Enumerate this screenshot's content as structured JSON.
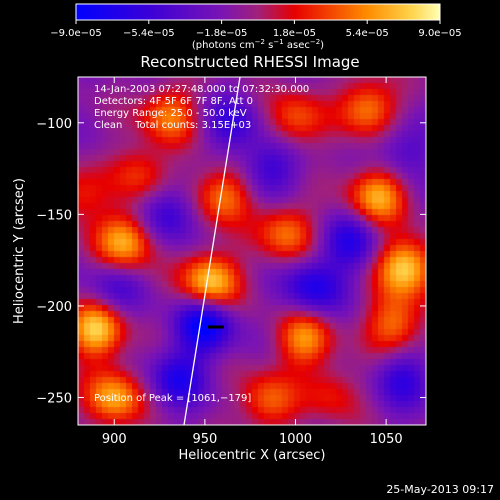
{
  "chart_data": {
    "type": "heatmap",
    "title": "Reconstructed RHESSI Image",
    "xlabel": "Heliocentric X (arcsec)",
    "ylabel": "Heliocentric Y (arcsec)",
    "xlim": [
      880,
      1072
    ],
    "ylim": [
      -265,
      -75
    ],
    "x_ticks": [
      900,
      950,
      1000,
      1050
    ],
    "x_tick_labels": [
      "900",
      "950",
      "1000",
      "1050"
    ],
    "y_ticks": [
      -100,
      -150,
      -200,
      -250
    ],
    "y_tick_labels": [
      "−100",
      "−150",
      "−200",
      "−250"
    ],
    "colorbar": {
      "min": -9e-05,
      "max": 9e-05,
      "tick_labels": [
        "−9.0e−05",
        "−5.4e−05",
        "−1.8e−05",
        "1.8e−05",
        "5.4e−05",
        "9.0e−05"
      ],
      "unit_base": "(photons cm",
      "unit_exp1": "−2",
      "unit_mid": " s",
      "unit_exp2": "−1",
      "unit_mid2": " asec",
      "unit_exp3": "−2",
      "unit_end": ")"
    },
    "blobs": [
      {
        "x": 953,
        "y": -187,
        "value": 9e-05
      },
      {
        "x": 1061,
        "y": -179,
        "value": 9e-05
      },
      {
        "x": 890,
        "y": -213,
        "value": 8.5e-05
      },
      {
        "x": 900,
        "y": -250,
        "value": 7.5e-05
      },
      {
        "x": 906,
        "y": -165,
        "value": 8e-05
      },
      {
        "x": 960,
        "y": -140,
        "value": 6.5e-05
      },
      {
        "x": 995,
        "y": -160,
        "value": 6e-05
      },
      {
        "x": 1045,
        "y": -140,
        "value": 7.5e-05
      },
      {
        "x": 930,
        "y": -96,
        "value": 6e-05
      },
      {
        "x": 1040,
        "y": -92,
        "value": 6.5e-05
      },
      {
        "x": 1000,
        "y": -98,
        "value": 5e-05
      },
      {
        "x": 1005,
        "y": -218,
        "value": 6.5e-05
      },
      {
        "x": 1055,
        "y": -210,
        "value": 6e-05
      },
      {
        "x": 985,
        "y": -252,
        "value": 5.5e-05
      },
      {
        "x": 915,
        "y": -128,
        "value": 4.5e-05
      },
      {
        "x": 1020,
        "y": -248,
        "value": 3.5e-05
      },
      {
        "x": 880,
        "y": -140,
        "value": 4e-05
      },
      {
        "x": 950,
        "y": -210,
        "value": -8e-05
      },
      {
        "x": 1010,
        "y": -190,
        "value": -6e-05
      },
      {
        "x": 930,
        "y": -150,
        "value": -5e-05
      },
      {
        "x": 985,
        "y": -125,
        "value": -4.5e-05
      },
      {
        "x": 1030,
        "y": -165,
        "value": -5e-05
      },
      {
        "x": 935,
        "y": -240,
        "value": -5.5e-05
      },
      {
        "x": 1060,
        "y": -240,
        "value": -4.5e-05
      },
      {
        "x": 900,
        "y": -190,
        "value": -3.5e-05
      },
      {
        "x": 965,
        "y": -100,
        "value": -4e-05
      },
      {
        "x": 1060,
        "y": -115,
        "value": -3.5e-05
      }
    ]
  },
  "annotations": {
    "line1": "14-Jan-2003 07:27:48.000 to 07:32:30.000",
    "line2": "Detectors: 4F 5F 6F 7F 8F, Att 0",
    "line3": "Energy Range: 25.0 - 50.0 keV",
    "line4": "Clean    Total counts: 3.15E+03",
    "peak": "Position of Peak = [1061,−179]"
  },
  "footer": {
    "timestamp": "25-May-2013 09:17"
  }
}
